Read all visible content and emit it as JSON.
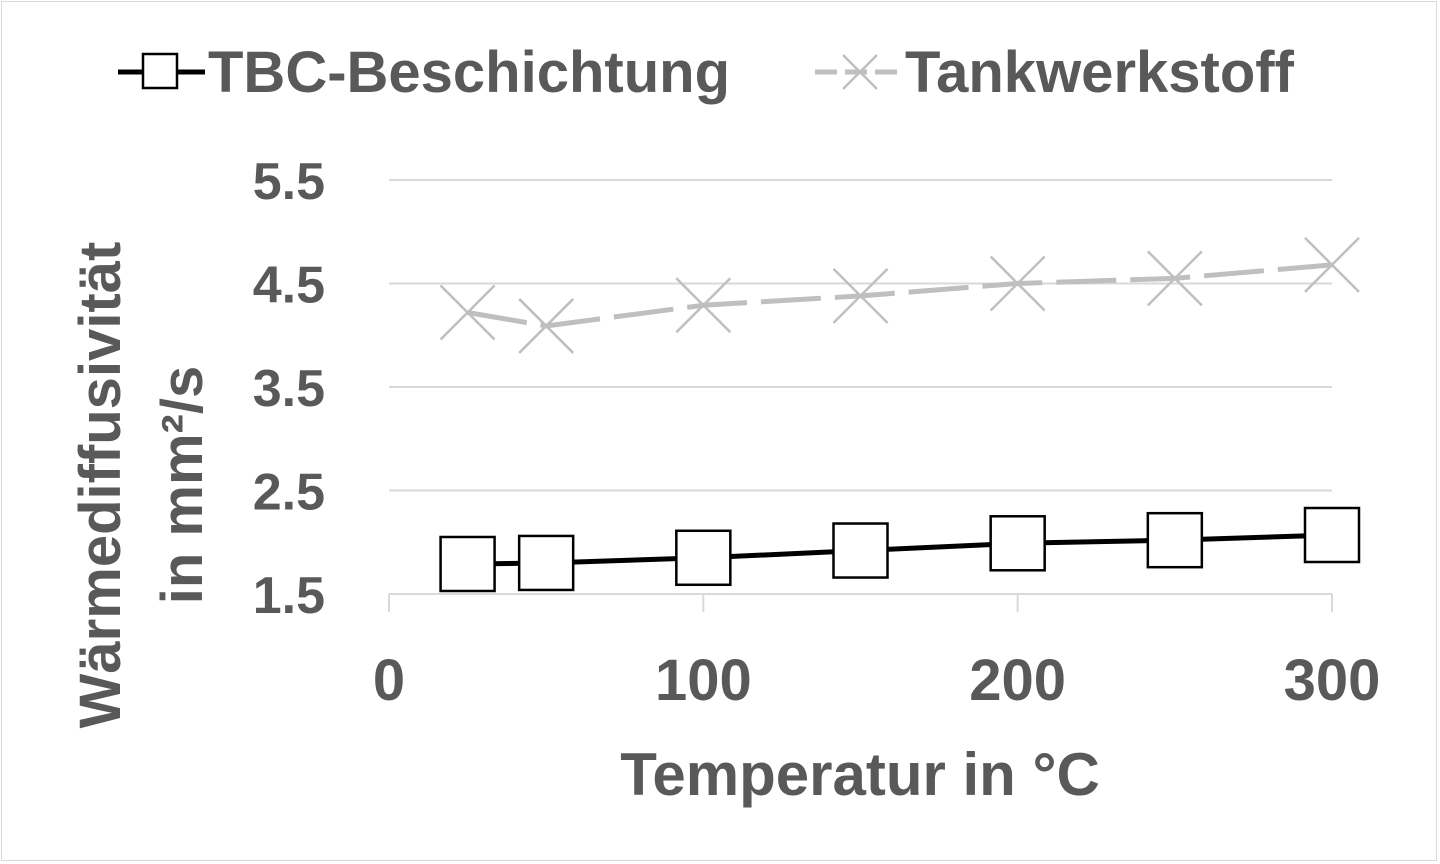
{
  "chart_data": {
    "type": "line",
    "title": "",
    "xlabel": "Temperatur in °C",
    "ylabel_line1": "Wärmediffusivität",
    "ylabel_line2": "in mm²/s",
    "xlim": [
      0,
      300
    ],
    "ylim": [
      1.5,
      5.5
    ],
    "xticks": [
      0,
      100,
      200,
      300
    ],
    "xtick_labels": [
      "0",
      "100",
      "200",
      "300"
    ],
    "yticks": [
      1.5,
      2.5,
      3.5,
      4.5,
      5.5
    ],
    "ytick_labels": [
      "1.5",
      "2.5",
      "3.5",
      "4.5",
      "5.5"
    ],
    "grid": true,
    "legend_position": "top",
    "x": [
      25,
      50,
      100,
      150,
      200,
      250,
      300
    ],
    "series": [
      {
        "name": "TBC-Beschichtung",
        "color": "#000000",
        "marker": "square",
        "values": [
          1.79,
          1.8,
          1.85,
          1.92,
          1.99,
          2.02,
          2.07
        ]
      },
      {
        "name": "Tankwerkstoff",
        "color": "#bfbfbf",
        "marker": "x",
        "values": [
          4.22,
          4.09,
          4.29,
          4.38,
          4.5,
          4.55,
          4.68
        ]
      }
    ]
  }
}
